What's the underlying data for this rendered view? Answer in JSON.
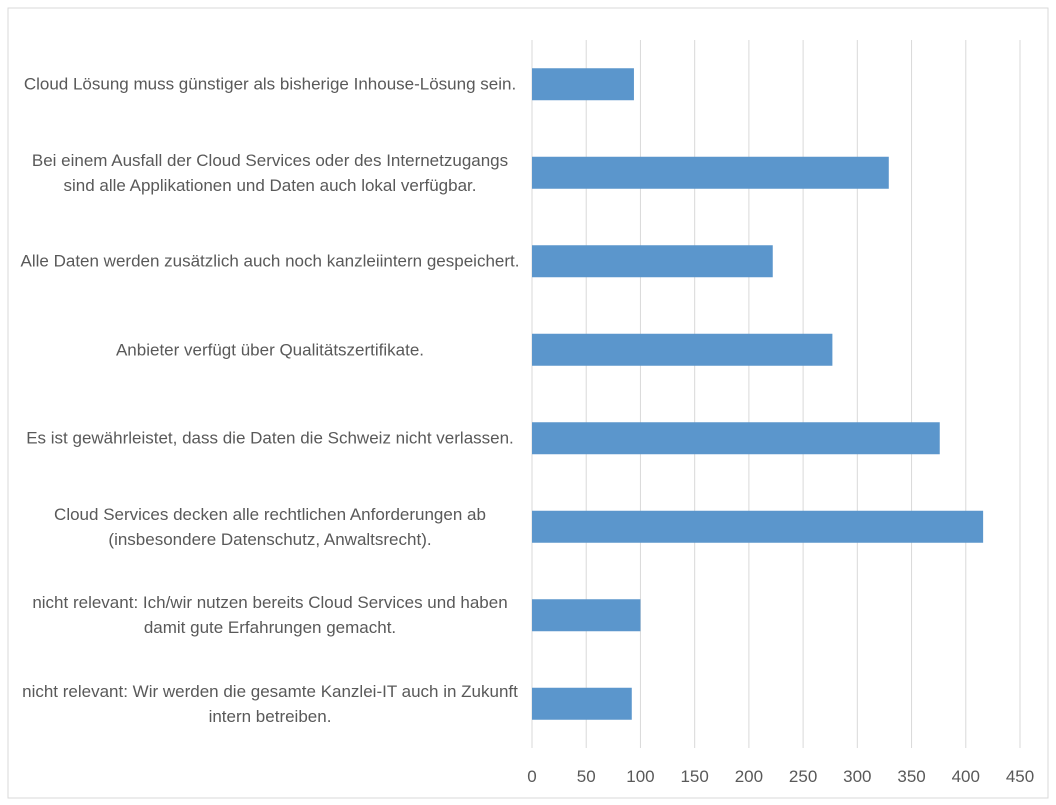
{
  "chart_data": {
    "type": "bar",
    "orientation": "horizontal",
    "categories": [
      "Cloud Lösung muss günstiger als bisherige Inhouse-Lösung sein.",
      "Bei einem Ausfall der Cloud Services oder des Internetzugangs sind alle Applikationen und Daten auch lokal verfügbar.",
      "Alle Daten werden zusätzlich auch noch kanzleiintern gespeichert.",
      "Anbieter verfügt über Qualitätszertifikate.",
      "Es ist gewährleistet, dass die Daten die Schweiz nicht verlassen.",
      "Cloud Services decken alle rechtlichen Anforderungen ab (insbesondere Datenschutz, Anwaltsrecht).",
      "nicht relevant: Ich/wir nutzen bereits Cloud Services und haben damit gute Erfahrungen gemacht.",
      "nicht relevant: Wir werden die gesamte Kanzlei-IT auch in Zukunft intern betreiben."
    ],
    "values": [
      94,
      329,
      222,
      277,
      376,
      416,
      100,
      92
    ],
    "color": "#5b96cc",
    "xlim": [
      0,
      450
    ],
    "xticks": [
      0,
      50,
      100,
      150,
      200,
      250,
      300,
      350,
      400,
      450
    ],
    "grid": true
  }
}
